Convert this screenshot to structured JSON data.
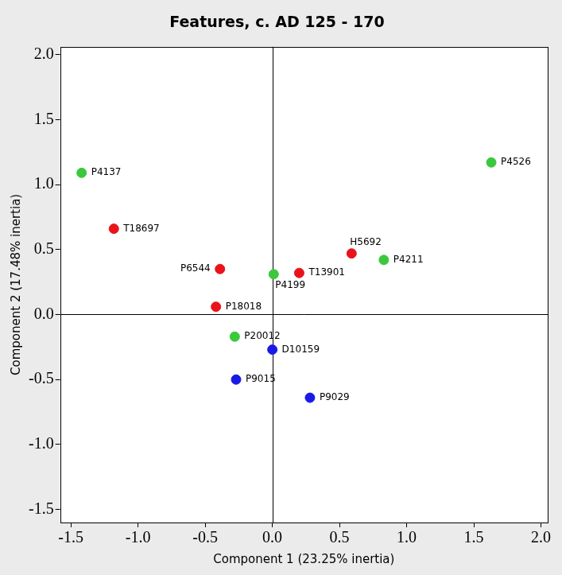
{
  "chart_data": {
    "type": "scatter",
    "title": "Features, c. AD 125 - 170",
    "x_label": "Component 1 (23.25% inertia)",
    "y_label": "Component 2 (17.48% inertia)",
    "point_labels": [
      "P4137",
      "P4526",
      "T18697",
      "P6544",
      "P4199",
      "T13901",
      "H5692",
      "P4211",
      "P18018",
      "P20012",
      "D10159",
      "P9015",
      "P9029"
    ],
    "x": [
      -1.42,
      1.63,
      -1.18,
      -0.39,
      0.01,
      0.2,
      0.59,
      0.83,
      -0.42,
      -0.28,
      0.0,
      -0.27,
      0.28
    ],
    "values": [
      1.09,
      1.17,
      0.66,
      0.35,
      0.31,
      0.32,
      0.47,
      0.42,
      0.06,
      -0.17,
      -0.27,
      -0.5,
      -0.64
    ],
    "colors": [
      "#3cc83c",
      "#3cc83c",
      "#e8141a",
      "#e8141a",
      "#3cc83c",
      "#e8141a",
      "#e8141a",
      "#3cc83c",
      "#e8141a",
      "#3cc83c",
      "#1a1ae6",
      "#1a1ae6",
      "#1a1ae6"
    ],
    "xlim": [
      -1.58,
      2.05
    ],
    "ylim": [
      -1.6,
      2.06
    ],
    "xticks": [
      -1.5,
      {
        "value": -1,
        "label": "-1.0"
      },
      -0.5,
      {
        "value": 0,
        "label": "0.0"
      },
      0.5,
      {
        "value": 1,
        "label": "1.0"
      },
      1.5,
      {
        "value": 2,
        "label": "2.0"
      }
    ],
    "yticks": [
      -1.5,
      {
        "value": -1,
        "label": "-1.0"
      },
      -0.5,
      {
        "value": 0,
        "label": "0.0"
      },
      0.5,
      {
        "value": 1,
        "label": "1.0"
      },
      1.5,
      {
        "value": 2,
        "label": "2.0"
      }
    ],
    "hlines": [
      0
    ],
    "vlines": [
      0
    ],
    "grid": false
  }
}
